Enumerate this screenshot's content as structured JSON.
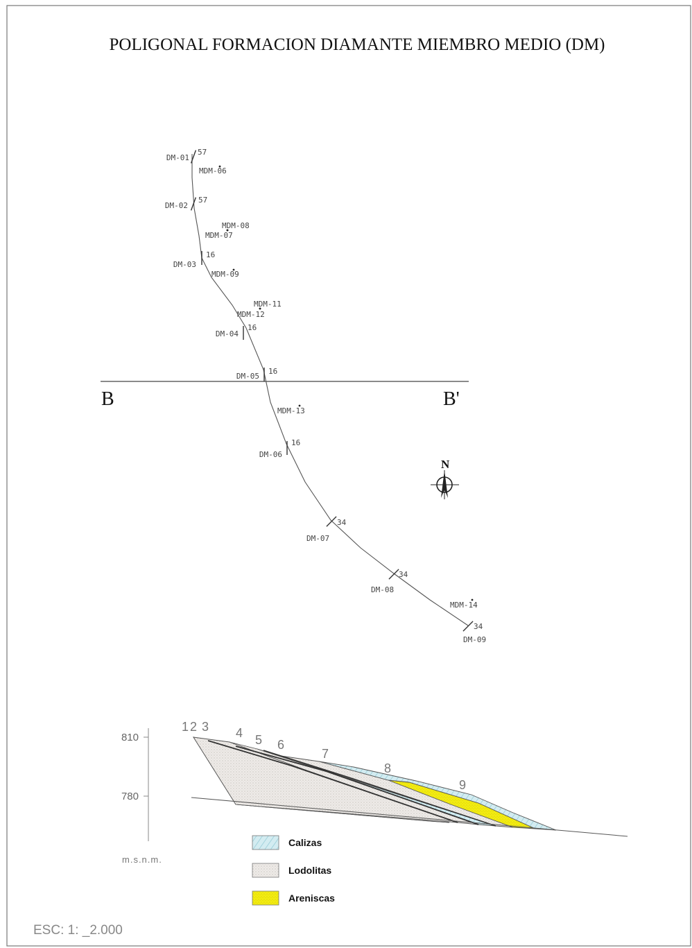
{
  "title": "POLIGONAL FORMACION DIAMANTE MIEMBRO MEDIO (DM)",
  "section_line": {
    "start": "B",
    "end": "B'"
  },
  "north_label": "N",
  "stations": [
    {
      "id": "DM-01",
      "dip": "57"
    },
    {
      "id": "DM-02",
      "dip": "57"
    },
    {
      "id": "DM-03",
      "dip": "16"
    },
    {
      "id": "DM-04",
      "dip": "16"
    },
    {
      "id": "DM-05",
      "dip": "16"
    },
    {
      "id": "DM-06",
      "dip": "16"
    },
    {
      "id": "DM-07",
      "dip": "34"
    },
    {
      "id": "DM-08",
      "dip": "34"
    },
    {
      "id": "DM-09",
      "dip": "34"
    }
  ],
  "samples": [
    "MDM-06",
    "MDM-08",
    "MDM-07",
    "MDM-09",
    "MDM-11",
    "MDM-12",
    "MDM-13",
    "MDM-14"
  ],
  "profile": {
    "y_ticks": [
      "810",
      "780"
    ],
    "unit": "m.s.n.m.",
    "stations": [
      "1",
      "2",
      "3",
      "4",
      "5",
      "6",
      "7",
      "8",
      "9"
    ]
  },
  "legend": [
    {
      "label": "Calizas",
      "color": "#cfe9ee"
    },
    {
      "label": "Lodolitas",
      "color": "#ece9e6"
    },
    {
      "label": "Areniscas",
      "color": "#f1ec14"
    }
  ],
  "scale_text": "ESC:  1: _2.000",
  "colors": {
    "frame": "#777777",
    "line": "#555555",
    "calizas_hatch": "#8fc8d4"
  }
}
